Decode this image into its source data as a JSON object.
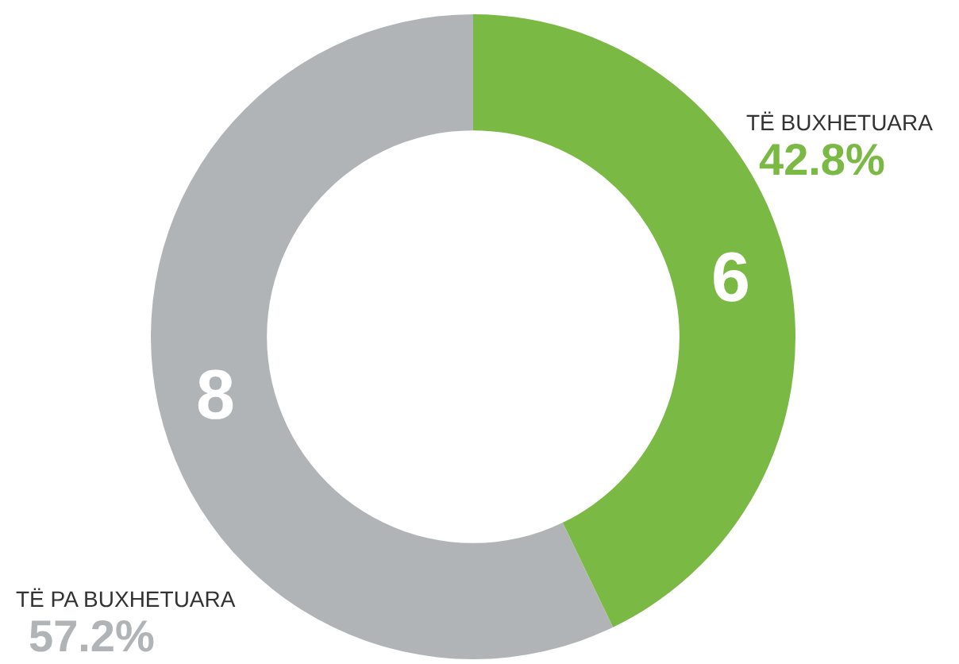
{
  "chart_data": {
    "type": "donut",
    "categories": [
      "TË BUXHETUARA",
      "TË PA BUXHETUARA"
    ],
    "values": [
      6,
      8
    ],
    "colors": [
      "#7ab943",
      "#b1b4b6"
    ],
    "data_labels": true,
    "annotations": [
      "42.8%",
      "57.2%"
    ]
  }
}
